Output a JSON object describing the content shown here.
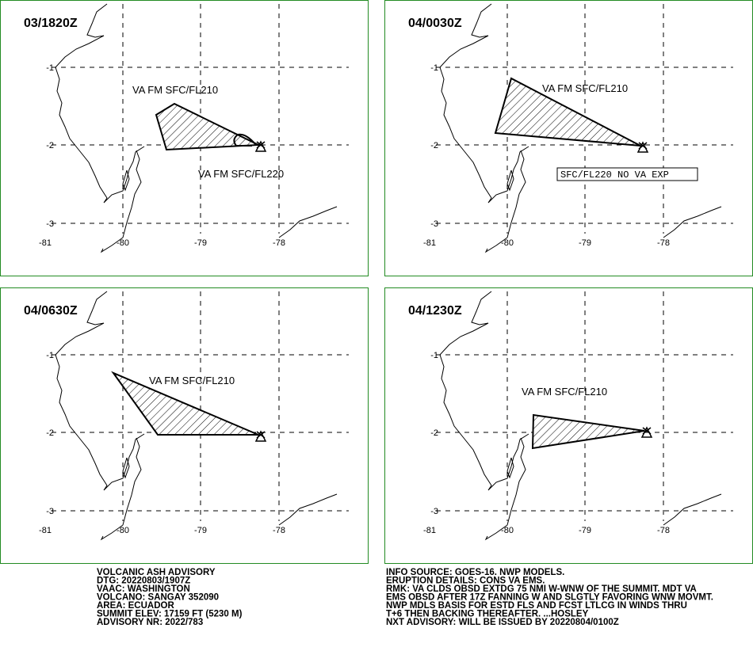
{
  "panels": [
    {
      "time": "03/1820Z",
      "labels": [
        "VA FM SFC/FL210",
        "VA FM SFC/FL220"
      ]
    },
    {
      "time": "04/0030Z",
      "labels": [
        "VA FM SFC/FL210"
      ],
      "box_label": "SFC/FL220 NO VA EXP"
    },
    {
      "time": "04/0630Z",
      "labels": [
        "VA FM SFC/FL210"
      ]
    },
    {
      "time": "04/1230Z",
      "labels": [
        "VA FM SFC/FL210"
      ]
    }
  ],
  "lon_ticks": [
    "-81",
    "-80",
    "-79",
    "-78"
  ],
  "lat_ticks": [
    "-1",
    "-2",
    "-3"
  ],
  "advisory_left": [
    "VOLCANIC ASH ADVISORY",
    "DTG: 20220803/1907Z",
    "VAAC: WASHINGTON",
    "VOLCANO: SANGAY 352090",
    "AREA: ECUADOR",
    "SUMMIT ELEV: 17159 FT (5230 M)",
    "ADVISORY NR: 2022/783"
  ],
  "advisory_right": [
    "INFO SOURCE: GOES-16. NWP MODELS.",
    "ERUPTION DETAILS: CONS VA EMS.",
    "RMK: VA CLDS OBSD EXTDG 75 NMI W-WNW OF THE SUMMIT. MDT VA",
    "EMS OBSD AFTER 17Z FANNING W AND SLGTLY FAVORING WNW MOVMT.",
    "NWP MDLS BASIS FOR ESTD FLS AND FCST LTLCG IN WINDS THRU",
    "T+6 THEN BACKING THEREAFTER. ...HOSLEY",
    "NXT ADVISORY: WILL BE ISSUED BY 20220804/0100Z"
  ]
}
